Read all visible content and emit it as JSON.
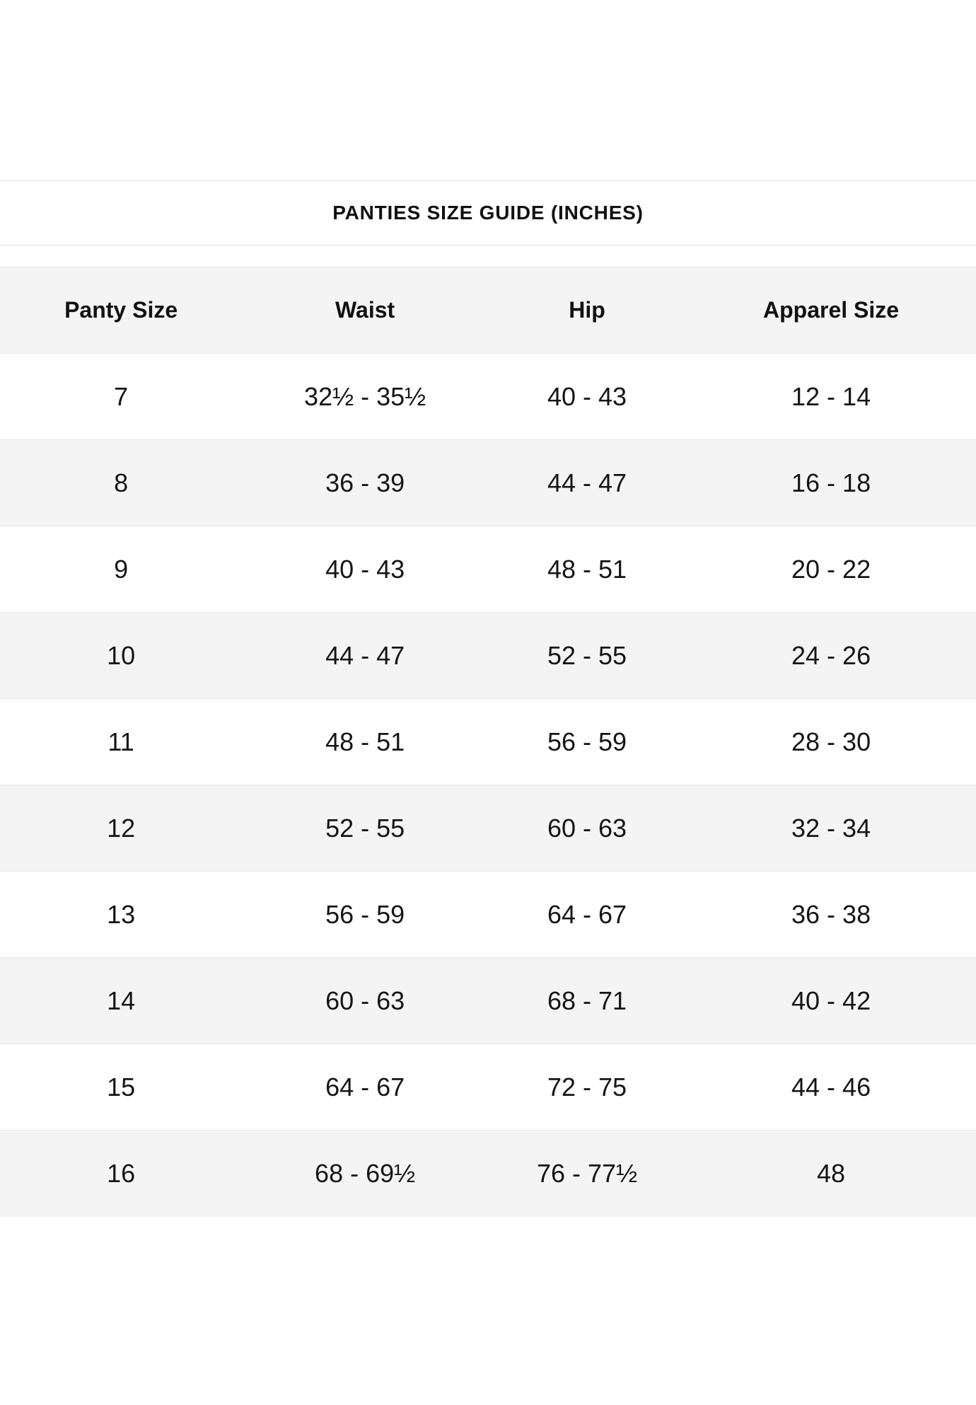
{
  "page": {
    "background": "#ffffff"
  },
  "size_guide": {
    "title": "PANTIES SIZE GUIDE (INCHES)",
    "columns": [
      "Panty Size",
      "Waist",
      "Hip",
      "Apparel Size"
    ],
    "rows": [
      {
        "panty_size": "7",
        "waist": "32½ - 35½",
        "hip": "40 - 43",
        "apparel_size": "12 - 14"
      },
      {
        "panty_size": "8",
        "waist": "36 - 39",
        "hip": "44 - 47",
        "apparel_size": "16 - 18"
      },
      {
        "panty_size": "9",
        "waist": "40 - 43",
        "hip": "48 - 51",
        "apparel_size": "20 - 22"
      },
      {
        "panty_size": "10",
        "waist": "44 - 47",
        "hip": "52 - 55",
        "apparel_size": "24 - 26"
      },
      {
        "panty_size": "11",
        "waist": "48 - 51",
        "hip": "56 - 59",
        "apparel_size": "28 - 30"
      },
      {
        "panty_size": "12",
        "waist": "52 - 55",
        "hip": "60 - 63",
        "apparel_size": "32 - 34"
      },
      {
        "panty_size": "13",
        "waist": "56 - 59",
        "hip": "64 - 67",
        "apparel_size": "36 - 38"
      },
      {
        "panty_size": "14",
        "waist": "60 - 63",
        "hip": "68 - 71",
        "apparel_size": "40 - 42"
      },
      {
        "panty_size": "15",
        "waist": "64 - 67",
        "hip": "72 - 75",
        "apparel_size": "44 - 46"
      },
      {
        "panty_size": "16",
        "waist": "68 - 69½",
        "hip": "76 - 77½",
        "apparel_size": "48"
      }
    ],
    "colors": {
      "row_alt_bg": "#f4f4f4",
      "divider": "#e7e7e7",
      "hairline": "#e2e2e2",
      "text": "#151515"
    }
  }
}
